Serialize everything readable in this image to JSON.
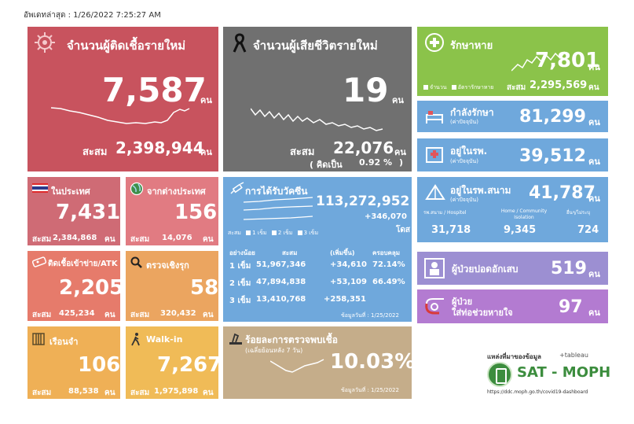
{
  "updated_label": "อัพเดทล่าสุด : 1/26/2022 7:25:27 AM",
  "new_cases": {
    "title": "จำนวนผู้ติดเชื้อรายใหม่",
    "value": "7,587",
    "unit": "คน",
    "cum_label": "สะสม",
    "cum_value": "2,398,944",
    "cum_unit": "คน"
  },
  "deaths": {
    "title": "จำนวนผู้เสียชีวิตรายใหม่",
    "value": "19",
    "unit": "คน",
    "cum_label": "สะสม",
    "cum_value": "22,076",
    "cum_unit": "คน",
    "rate_label": "( คิดเป็น",
    "rate_value": "0.92 %",
    "rate_close": ")"
  },
  "recovered": {
    "title": "รักษาหาย",
    "value": "7,801",
    "unit": "คน",
    "legend_1": "จำนวน",
    "legend_2": "อัตรารักษาหาย",
    "cum_label": "สะสม",
    "cum_value": "2,295,569",
    "cum_unit": "คน"
  },
  "in_treatment": {
    "title": "กำลังรักษา",
    "sub": "(ค่าปัจจุบัน)",
    "value": "81,299",
    "unit": "คน"
  },
  "in_hospital": {
    "title": "อยู่ในรพ.",
    "sub": "(ค่าปัจจุบัน)",
    "value": "39,512",
    "unit": "คน"
  },
  "field_hospital": {
    "title": "อยู่ในรพ.สนาม",
    "sub": "(ค่าปัจจุบัน)",
    "value": "41,787",
    "unit": "คน",
    "col1_label": "รพ.สนาม / Hospitel",
    "col1_value": "31,718",
    "col2_label": "Home / Community Isolation",
    "col2_value": "9,345",
    "col3_label": "อื่นๆ/ไม่ระบุ",
    "col3_value": "724"
  },
  "pneumonia": {
    "title": "ผู้ป่วยปอดอักเสบ",
    "value": "519",
    "unit": "คน"
  },
  "ventilator": {
    "title_1": "ผู้ป่วย",
    "title_2": "ใส่ท่อช่วยหายใจ",
    "value": "97",
    "unit": "คน"
  },
  "domestic": {
    "title": "ในประเทศ",
    "value": "7,431",
    "cum_label": "สะสม",
    "cum_value": "2,384,868",
    "cum_unit": "คน"
  },
  "abroad": {
    "title": "จากต่างประเทศ",
    "value": "156",
    "cum_label": "สะสม",
    "cum_value": "14,076",
    "cum_unit": "คน"
  },
  "atk": {
    "title": "ติดเชื้อเข้าข่าย/ATK",
    "value": "2,205",
    "cum_label": "สะสม",
    "cum_value": "425,234",
    "cum_unit": "คน"
  },
  "active_search": {
    "title": "ตรวจเชิงรุก",
    "value": "58",
    "cum_label": "สะสม",
    "cum_value": "320,432",
    "cum_unit": "คน"
  },
  "prison": {
    "title": "เรือนจำ",
    "value": "106",
    "cum_label": "สะสม",
    "cum_value": "88,538",
    "cum_unit": "คน"
  },
  "walkin": {
    "title": "Walk-in",
    "value": "7,267",
    "cum_label": "สะสม",
    "cum_value": "1,975,898",
    "cum_unit": "คน"
  },
  "vaccine": {
    "title": "การได้รับวัคซีน",
    "total": "113,272,952",
    "daily": "+346,070",
    "unit": "โดส",
    "legend_prefix": "สะสม",
    "legend_1": "1 เข็ม",
    "legend_2": "2 เข็ม",
    "legend_3": "3 เข็ม",
    "headers": [
      "อย่างน้อย",
      "สะสม",
      "(เพิ่มขึ้น)",
      "ครอบคลุม"
    ],
    "rows": [
      {
        "dose": "1 เข็ม",
        "cum": "51,967,346",
        "inc": "+34,610",
        "cov": "72.14%"
      },
      {
        "dose": "2 เข็ม",
        "cum": "47,894,838",
        "inc": "+53,109",
        "cov": "66.49%"
      },
      {
        "dose": "3 เข็ม",
        "cum": "13,410,768",
        "inc": "+258,351",
        "cov": ""
      }
    ],
    "data_date": "ข้อมูลวันที่ : 1/25/2022"
  },
  "positivity": {
    "title": "ร้อยละการตรวจพบเชื้อ",
    "sub": "(เฉลี่ยย้อนหลัง 7 วัน)",
    "value": "10.03%",
    "data_date": "ข้อมูลวันที่ : 1/25/2022"
  },
  "source": {
    "label": "แหล่งที่มาของข้อมูล",
    "tableau": "+tableau",
    "org": "SAT - MOPH",
    "url": "https://ddc.moph.go.th/covid19-dashboard"
  },
  "colors": {
    "new_cases": "#c8535e",
    "deaths": "#707070",
    "recovered": "#8bc34a",
    "hospital_blue": "#6fa8dc",
    "pneumonia": "#9c8fd2",
    "ventilator": "#b37bd1",
    "domestic": "#cf6b75",
    "abroad": "#e17b82",
    "atk": "#e67b6b",
    "active": "#eba560",
    "prison": "#efb056",
    "walkin": "#f0bb57",
    "positivity": "#c5ad8a",
    "moph_green": "#3c8d3e"
  },
  "icons": [
    "virus-icon",
    "black-ribbon-icon",
    "recover-cross-icon",
    "hospital-bed-icon",
    "hospital-building-icon",
    "tent-icon",
    "patient-icon",
    "ventilator-icon",
    "thai-flag-icon",
    "globe-icon",
    "atk-test-icon",
    "magnifier-icon",
    "prison-bars-icon",
    "walking-person-icon",
    "syringe-icon",
    "lab-microscope-icon"
  ]
}
